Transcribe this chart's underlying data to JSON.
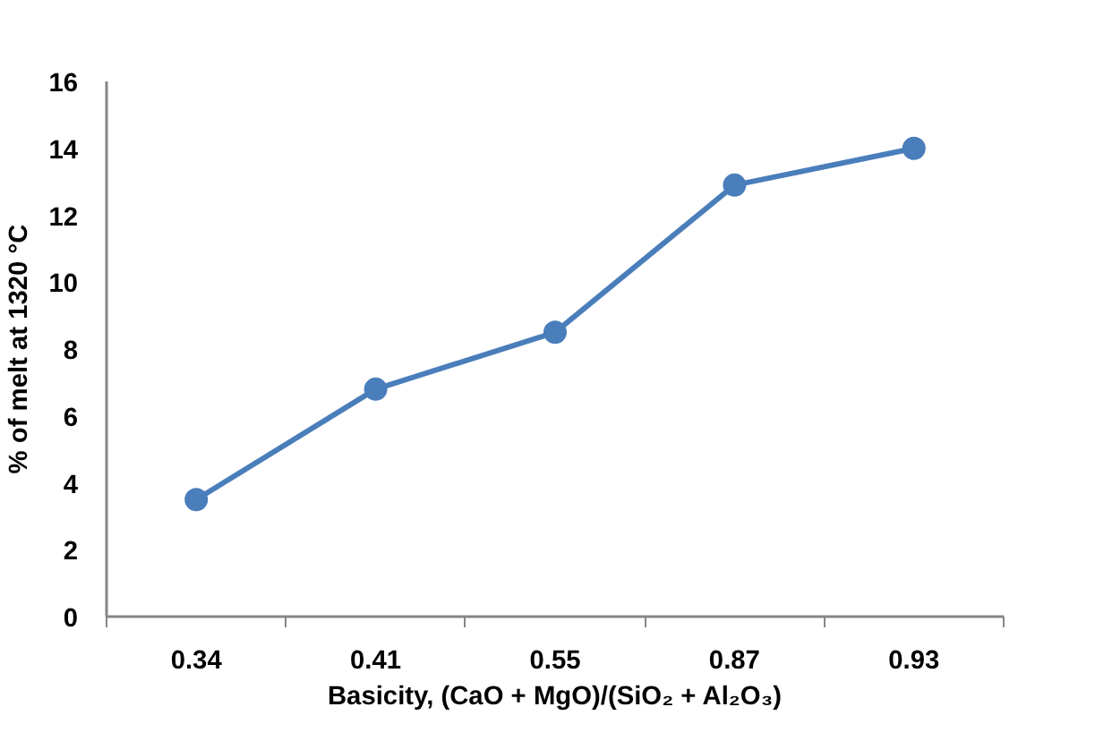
{
  "chart_data": {
    "type": "line",
    "xlabel": "Basicity, (CaO + MgO)/(SiO₂ + Al₂O₃)",
    "ylabel": "% of melt at 1320 °C",
    "categories": [
      "0.34",
      "0.41",
      "0.55",
      "0.87",
      "0.93"
    ],
    "series": [
      {
        "color": "#4a7ebb",
        "values": [
          3.5,
          6.8,
          8.5,
          12.9,
          14.0
        ]
      }
    ],
    "ylim": [
      0,
      16
    ],
    "yticks": [
      0,
      2,
      4,
      6,
      8,
      10,
      12,
      14,
      16
    ],
    "grid": false,
    "marker": "circle",
    "line_style": "solid"
  }
}
